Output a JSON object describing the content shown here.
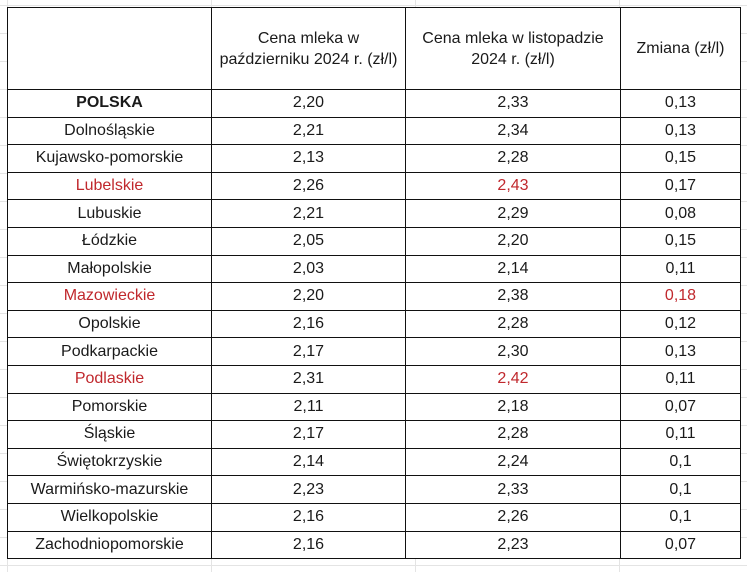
{
  "table": {
    "headers": [
      "",
      "Cena mleka w październiku 2024 r. (zł/l)",
      "Cena mleka w listopadzie 2024 r. (zł/l)",
      "Zmiana (zł/l)"
    ],
    "highlight_color": "#c0282d",
    "rows": [
      {
        "region": "POLSKA",
        "oct": "2,20",
        "nov": "2,33",
        "change": "0,13",
        "bold": true
      },
      {
        "region": "Dolnośląskie",
        "oct": "2,21",
        "nov": "2,34",
        "change": "0,13"
      },
      {
        "region": "Kujawsko-pomorskie",
        "oct": "2,13",
        "nov": "2,28",
        "change": "0,15"
      },
      {
        "region": "Lubelskie",
        "oct": "2,26",
        "nov": "2,43",
        "change": "0,17",
        "red": [
          "region",
          "nov"
        ]
      },
      {
        "region": "Lubuskie",
        "oct": "2,21",
        "nov": "2,29",
        "change": "0,08"
      },
      {
        "region": "Łódzkie",
        "oct": "2,05",
        "nov": "2,20",
        "change": "0,15"
      },
      {
        "region": "Małopolskie",
        "oct": "2,03",
        "nov": "2,14",
        "change": "0,11"
      },
      {
        "region": "Mazowieckie",
        "oct": "2,20",
        "nov": "2,38",
        "change": "0,18",
        "red": [
          "region",
          "change"
        ]
      },
      {
        "region": "Opolskie",
        "oct": "2,16",
        "nov": "2,28",
        "change": "0,12"
      },
      {
        "region": "Podkarpackie",
        "oct": "2,17",
        "nov": "2,30",
        "change": "0,13"
      },
      {
        "region": "Podlaskie",
        "oct": "2,31",
        "nov": "2,42",
        "change": "0,11",
        "red": [
          "region",
          "nov"
        ]
      },
      {
        "region": "Pomorskie",
        "oct": "2,11",
        "nov": "2,18",
        "change": "0,07"
      },
      {
        "region": "Śląskie",
        "oct": "2,17",
        "nov": "2,28",
        "change": "0,11"
      },
      {
        "region": "Świętokrzyskie",
        "oct": "2,14",
        "nov": "2,24",
        "change": "0,1"
      },
      {
        "region": "Warmińsko-mazurskie",
        "oct": "2,23",
        "nov": "2,33",
        "change": "0,1"
      },
      {
        "region": "Wielkopolskie",
        "oct": "2,16",
        "nov": "2,26",
        "change": "0,1"
      },
      {
        "region": "Zachodniopomorskie",
        "oct": "2,16",
        "nov": "2,23",
        "change": "0,07"
      }
    ]
  }
}
